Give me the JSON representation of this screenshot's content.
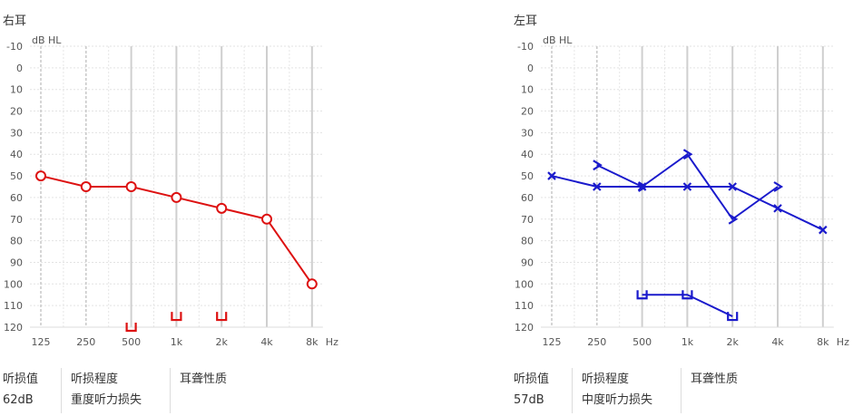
{
  "panels": {
    "right": {
      "title": "右耳",
      "loss_label": "听损值",
      "degree_label": "听损程度",
      "nature_label": "耳聋性质",
      "loss_value": "62dB",
      "degree_value": "重度听力损失",
      "nature_value": ""
    },
    "left": {
      "title": "左耳",
      "loss_label": "听损值",
      "degree_label": "听损程度",
      "nature_label": "耳聋性质",
      "loss_value": "57dB",
      "degree_value": "中度听力损失",
      "nature_value": ""
    }
  },
  "chart_data": [
    {
      "type": "line",
      "title": "右耳",
      "ylabel": "dB HL",
      "xlabel": "Hz",
      "x_categories": [
        "125",
        "250",
        "500",
        "1k",
        "2k",
        "4k",
        "8k"
      ],
      "y_ticks": [
        -10,
        0,
        10,
        20,
        30,
        40,
        50,
        60,
        70,
        80,
        90,
        100,
        110,
        120
      ],
      "ylim": [
        -10,
        120
      ],
      "y_inverted": true,
      "grid": true,
      "color": "#dd1111",
      "series": [
        {
          "marker": "O",
          "x": [
            "125",
            "250",
            "500",
            "1k",
            "2k",
            "4k",
            "8k"
          ],
          "y": [
            50,
            55,
            55,
            60,
            65,
            70,
            100
          ],
          "connected": true
        },
        {
          "marker": "[",
          "x": [
            "500",
            "1k",
            "2k"
          ],
          "y": [
            120,
            115,
            115
          ],
          "connected": false
        }
      ]
    },
    {
      "type": "line",
      "title": "左耳",
      "ylabel": "dB HL",
      "xlabel": "Hz",
      "x_categories": [
        "125",
        "250",
        "500",
        "1k",
        "2k",
        "4k",
        "8k"
      ],
      "y_ticks": [
        -10,
        0,
        10,
        20,
        30,
        40,
        50,
        60,
        70,
        80,
        90,
        100,
        110,
        120
      ],
      "ylim": [
        -10,
        120
      ],
      "y_inverted": true,
      "grid": true,
      "color": "#1a1acc",
      "series": [
        {
          "marker": "X",
          "x": [
            "125",
            "250",
            "500",
            "1k",
            "2k",
            "4k",
            "8k"
          ],
          "y": [
            50,
            55,
            55,
            55,
            55,
            65,
            75
          ],
          "connected": true
        },
        {
          "marker": ">",
          "x": [
            "250",
            "500",
            "1k",
            "2k",
            "4k"
          ],
          "y": [
            45,
            55,
            40,
            70,
            55
          ],
          "connected": true
        },
        {
          "marker": "]",
          "x": [
            "500",
            "1k",
            "2k"
          ],
          "y": [
            105,
            105,
            115
          ],
          "connected": true
        }
      ]
    }
  ]
}
